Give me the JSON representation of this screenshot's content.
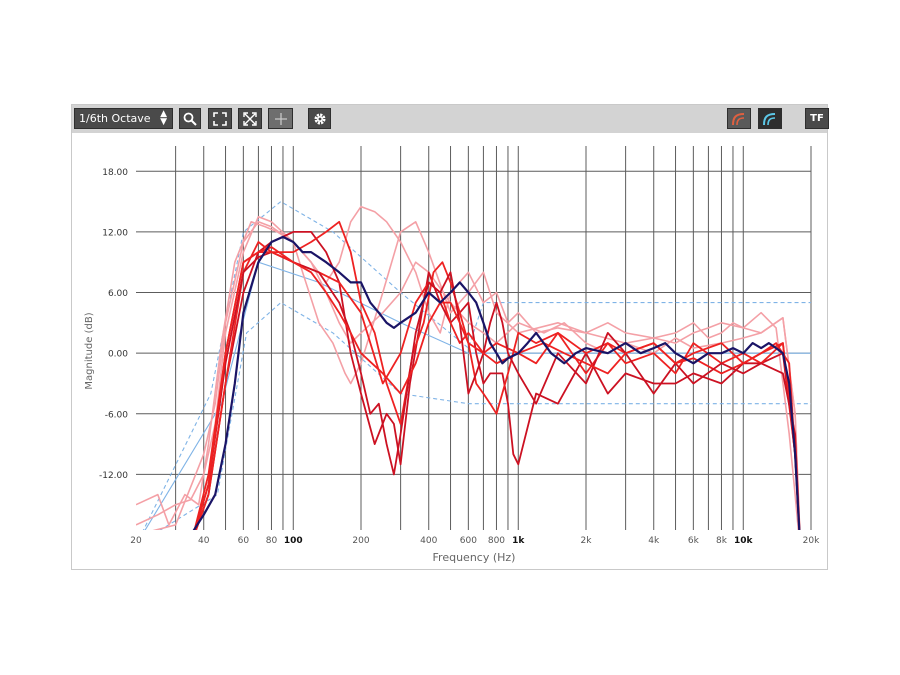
{
  "toolbar": {
    "octave_label": "1/6th Octave",
    "tf_label": "TF",
    "icons": [
      "search-icon",
      "fit-icon",
      "expand-icon",
      "plus-icon",
      "gear-icon",
      "curve-red-icon",
      "curve-blue-icon"
    ]
  },
  "colors": {
    "reference": "#1a1466",
    "target": "#7fb3e6",
    "red_bright": "#ee2222",
    "red_dark": "#cc1122",
    "pink": "#f4a0a6",
    "grid": "#5c5c5c"
  },
  "chart_data": {
    "type": "line",
    "xscale": "log",
    "xlabel": "Frequency (Hz)",
    "ylabel": "Magnitude (dB)",
    "xlim": [
      20,
      20000
    ],
    "ylim": [
      -17.5,
      20.5
    ],
    "x_ticks": [
      {
        "value": 20,
        "label": "20",
        "bold": false
      },
      {
        "value": 40,
        "label": "40",
        "bold": false
      },
      {
        "value": 60,
        "label": "60",
        "bold": false
      },
      {
        "value": 80,
        "label": "80",
        "bold": false
      },
      {
        "value": 100,
        "label": "100",
        "bold": true
      },
      {
        "value": 200,
        "label": "200",
        "bold": false
      },
      {
        "value": 400,
        "label": "400",
        "bold": false
      },
      {
        "value": 600,
        "label": "600",
        "bold": false
      },
      {
        "value": 800,
        "label": "800",
        "bold": false
      },
      {
        "value": 1000,
        "label": "1k",
        "bold": true
      },
      {
        "value": 2000,
        "label": "2k",
        "bold": false
      },
      {
        "value": 4000,
        "label": "4k",
        "bold": false
      },
      {
        "value": 6000,
        "label": "6k",
        "bold": false
      },
      {
        "value": 8000,
        "label": "8k",
        "bold": false
      },
      {
        "value": 10000,
        "label": "10k",
        "bold": true
      },
      {
        "value": 20000,
        "label": "20k",
        "bold": false
      }
    ],
    "x_gridlines": [
      30,
      40,
      50,
      60,
      70,
      80,
      90,
      100,
      200,
      300,
      400,
      500,
      600,
      700,
      800,
      900,
      1000,
      2000,
      3000,
      4000,
      5000,
      6000,
      7000,
      8000,
      9000,
      10000,
      20000
    ],
    "y_ticks": [
      {
        "value": 18,
        "label": "18.00"
      },
      {
        "value": 12,
        "label": "12.00"
      },
      {
        "value": 6,
        "label": "6.00"
      },
      {
        "value": 0,
        "label": "0.00"
      },
      {
        "value": -6,
        "label": "-6.00"
      },
      {
        "value": -12,
        "label": "-12.00"
      }
    ],
    "target_curves": [
      {
        "style": "dashed",
        "x": [
          20,
          43,
          60,
          88,
          150,
          300,
          600,
          700,
          20000
        ],
        "y": [
          -19,
          -4,
          12,
          15,
          12,
          6,
          0.5,
          5,
          5
        ]
      },
      {
        "style": "dashed",
        "x": [
          20,
          46,
          62,
          88,
          150,
          300,
          600,
          700,
          20000
        ],
        "y": [
          -19,
          -14,
          2,
          5,
          2,
          -4,
          -5,
          -5,
          -5
        ]
      },
      {
        "style": "solid",
        "x": [
          20,
          48,
          70,
          130,
          300,
          600,
          20000
        ],
        "y": [
          -19,
          -5,
          9,
          7,
          3,
          0,
          0
        ]
      }
    ],
    "series": [
      {
        "color": "pink",
        "width": 1.6,
        "x": [
          20,
          25,
          28,
          33,
          38,
          42,
          48,
          55,
          65,
          75,
          85,
          100,
          120,
          140,
          160,
          180,
          200,
          230,
          260,
          300,
          350,
          400,
          450,
          500,
          600,
          700,
          800,
          900,
          1000,
          1200,
          1500,
          2000,
          2500,
          3000,
          4000,
          5000,
          6000,
          7000,
          8000,
          9000,
          10000,
          12000,
          14000,
          16000,
          17000,
          18000
        ],
        "y": [
          -15,
          -14,
          -17,
          -14,
          -15,
          -9,
          1,
          9,
          13,
          12.5,
          12,
          11,
          9,
          7,
          9,
          13,
          14.5,
          14,
          13,
          11,
          8,
          4,
          2,
          6,
          8,
          5,
          6,
          3,
          4,
          2,
          2.5,
          2,
          3,
          2,
          1.5,
          2,
          3,
          1.5,
          2,
          3,
          2.5,
          4,
          2.5,
          -8,
          -14,
          -20
        ]
      },
      {
        "color": "pink",
        "width": 1.6,
        "x": [
          20,
          25,
          30,
          35,
          40,
          45,
          50,
          60,
          70,
          80,
          100,
          120,
          140,
          160,
          180,
          200,
          250,
          300,
          350,
          400,
          500,
          600,
          700,
          800,
          1000,
          1300,
          1600,
          2000,
          2500,
          3000,
          4000,
          5000,
          6000,
          8000,
          10000,
          12000,
          15000,
          17000,
          18000
        ],
        "y": [
          -17,
          -16,
          -15,
          -14.5,
          -12,
          -7,
          2,
          10,
          13.5,
          13,
          11,
          9,
          6,
          3,
          1,
          2,
          4,
          6,
          9,
          8,
          5,
          3,
          2,
          1,
          3,
          2,
          3,
          1,
          0,
          1,
          0,
          1.5,
          0.5,
          1,
          1.5,
          2,
          3.5,
          -6,
          -20
        ]
      },
      {
        "color": "pink",
        "width": 1.6,
        "x": [
          20,
          30,
          40,
          45,
          50,
          60,
          70,
          80,
          100,
          110,
          130,
          150,
          170,
          180,
          200,
          250,
          300,
          350,
          400,
          500,
          600,
          700,
          800,
          1000,
          1500,
          2000,
          3000,
          4000,
          5000,
          6000,
          7000,
          8000,
          10000,
          12000,
          15000,
          17000,
          18000
        ],
        "y": [
          -18,
          -17,
          -10,
          -5,
          3,
          11,
          13,
          12.5,
          11,
          8,
          3,
          1,
          -2,
          -3,
          -1,
          6,
          12,
          13,
          10,
          4,
          6,
          8,
          4,
          2,
          3,
          2,
          1,
          1.5,
          1,
          2,
          2.5,
          3,
          2.5,
          2,
          3.5,
          -6,
          -20
        ]
      },
      {
        "color": "red_dark",
        "width": 1.8,
        "x": [
          20,
          35,
          42,
          50,
          60,
          70,
          80,
          100,
          120,
          140,
          160,
          180,
          200,
          230,
          260,
          280,
          300,
          330,
          400,
          450,
          500,
          550,
          600,
          650,
          700,
          750,
          800,
          850,
          900,
          950,
          1000,
          1200,
          1500,
          2000,
          2500,
          3000,
          4000,
          5000,
          6000,
          8000,
          10000,
          12000,
          15000,
          17000,
          18000
        ],
        "y": [
          -20,
          -19,
          -14,
          -3,
          6,
          10,
          11,
          12,
          12,
          10,
          7,
          0,
          -4,
          -9,
          -6,
          -7,
          -11,
          -3,
          8,
          5,
          3,
          4,
          5,
          0,
          -3,
          -2,
          -2,
          -2,
          -5,
          -10,
          -11,
          -4,
          -5,
          0,
          -4,
          -2,
          -3,
          -3,
          -2,
          -3,
          -1,
          -1,
          0,
          -10,
          -20
        ]
      },
      {
        "color": "red_bright",
        "width": 1.8,
        "x": [
          20,
          35,
          42,
          50,
          60,
          70,
          80,
          100,
          120,
          140,
          160,
          180,
          200,
          230,
          260,
          300,
          340,
          380,
          420,
          460,
          500,
          550,
          600,
          650,
          700,
          750,
          800,
          900,
          1000,
          1200,
          1500,
          2000,
          2500,
          3000,
          4000,
          5000,
          6000,
          8000,
          10000,
          12000,
          15000,
          17000,
          18000
        ],
        "y": [
          -20,
          -19,
          -14,
          -3,
          8,
          11,
          10,
          10,
          11,
          12,
          13,
          10,
          5,
          2,
          -3,
          -7,
          0,
          3,
          8,
          9,
          7,
          4,
          1,
          -3,
          -4,
          -5,
          -6,
          -2,
          2,
          1,
          2,
          0,
          1,
          0,
          1,
          -1,
          -0.5,
          -2,
          -1,
          0,
          1,
          -10,
          -20
        ]
      },
      {
        "color": "red_bright",
        "width": 1.8,
        "x": [
          20,
          35,
          42,
          50,
          60,
          70,
          80,
          100,
          130,
          160,
          200,
          250,
          300,
          350,
          400,
          450,
          500,
          550,
          600,
          700,
          800,
          1000,
          1200,
          1500,
          2000,
          2500,
          3000,
          4000,
          5000,
          6000,
          8000,
          10000,
          12000,
          15000,
          17000,
          18000
        ],
        "y": [
          -20,
          -19,
          -12,
          0,
          9,
          10,
          10.5,
          9,
          8,
          7,
          4,
          -3,
          0,
          5,
          7,
          6,
          3,
          1,
          2,
          0,
          1,
          0,
          -1,
          2,
          -2,
          1,
          -1,
          0,
          -2,
          1,
          -1,
          0,
          -1,
          1,
          -10,
          -20
        ]
      },
      {
        "color": "red_dark",
        "width": 1.8,
        "x": [
          20,
          35,
          42,
          50,
          60,
          70,
          80,
          100,
          130,
          160,
          180,
          200,
          220,
          240,
          260,
          280,
          300,
          350,
          400,
          450,
          500,
          550,
          600,
          650,
          700,
          750,
          800,
          850,
          900,
          1000,
          1200,
          1500,
          2000,
          2500,
          3000,
          4000,
          5000,
          6000,
          8000,
          10000,
          12000,
          15000,
          17000,
          18000
        ],
        "y": [
          -20,
          -19,
          -13,
          -1,
          8,
          9.5,
          10,
          9,
          8,
          5,
          2,
          -2,
          -6,
          -5,
          -9,
          -12,
          -8,
          2,
          7,
          6,
          8,
          3,
          -4,
          -2,
          0,
          3,
          5,
          3,
          0,
          -2,
          -5,
          0,
          -3,
          2,
          0,
          -4,
          -1,
          -3,
          -1,
          -2,
          -1,
          -2,
          -8,
          -20
        ]
      },
      {
        "color": "red_bright",
        "width": 1.8,
        "x": [
          20,
          35,
          42,
          50,
          60,
          70,
          80,
          90,
          100,
          120,
          140,
          160,
          180,
          200,
          250,
          300,
          350,
          400,
          450,
          500,
          550,
          600,
          700,
          800,
          1000,
          1300,
          1600,
          2000,
          2500,
          3000,
          4000,
          5000,
          6000,
          8000,
          10000,
          12000,
          14000,
          16000,
          17000,
          18000
        ],
        "y": [
          -20,
          -19,
          -13,
          0,
          9,
          10,
          10,
          9.5,
          9,
          8,
          6,
          4,
          2,
          0,
          -2,
          -4,
          -1,
          3,
          5,
          5,
          3,
          1,
          0,
          -1,
          0,
          1,
          0,
          -1,
          -2,
          0,
          1,
          -1,
          0,
          1,
          -1,
          0,
          1,
          -1,
          -10,
          -20
        ]
      },
      {
        "color": "reference",
        "width": 2.2,
        "x": [
          20,
          30,
          35,
          40,
          45,
          50,
          55,
          60,
          70,
          80,
          90,
          100,
          110,
          120,
          140,
          160,
          180,
          200,
          220,
          240,
          260,
          280,
          300,
          350,
          400,
          450,
          500,
          550,
          600,
          650,
          700,
          750,
          800,
          850,
          900,
          1000,
          1100,
          1200,
          1400,
          1600,
          1800,
          2000,
          2500,
          3000,
          3500,
          4000,
          4500,
          5000,
          6000,
          7000,
          8000,
          9000,
          10000,
          11000,
          12000,
          13000,
          14000,
          15000,
          16000,
          17000,
          18000
        ],
        "y": [
          -20,
          -18.5,
          -18,
          -16,
          -14,
          -9,
          -3,
          4,
          9,
          11,
          11.5,
          11,
          10,
          10,
          9,
          8,
          7,
          7,
          5,
          4,
          3,
          2.5,
          3,
          4,
          6,
          5,
          6,
          7,
          6,
          5,
          3,
          1,
          0,
          -1,
          -0.5,
          0,
          1,
          2,
          0,
          -1,
          0,
          0.5,
          0,
          1,
          0,
          0.5,
          1,
          0,
          -1,
          0,
          0,
          0.5,
          0,
          1,
          0.5,
          1,
          0.5,
          0,
          -3,
          -10,
          -20
        ]
      }
    ]
  }
}
